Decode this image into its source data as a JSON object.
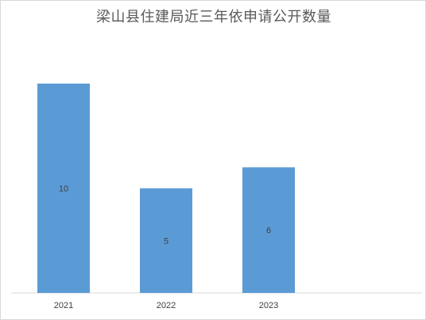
{
  "chart_data": {
    "type": "bar",
    "title": "梁山县住建局近三年依申请公开数量",
    "categories": [
      "2021",
      "2022",
      "2023"
    ],
    "values": [
      10,
      5,
      6
    ],
    "data_labels": [
      "10",
      "5",
      "6"
    ],
    "xlabel": "",
    "ylabel": "",
    "ylim": [
      0,
      10.8
    ],
    "grid": false,
    "legend": "none",
    "bar_color": "#5b9bd5",
    "axis_color": "#d9d9d9"
  }
}
